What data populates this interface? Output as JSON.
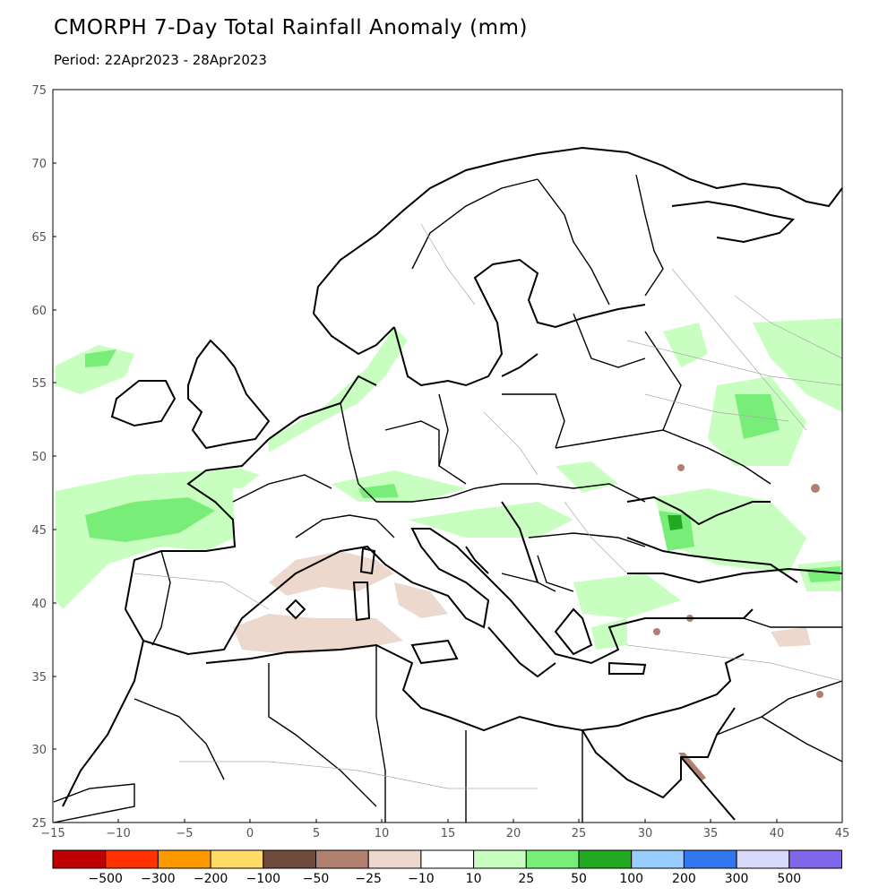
{
  "title": "CMORPH 7-Day Total Rainfall Anomaly (mm)",
  "subtitle": "Period: 22Apr2023 - 28Apr2023",
  "map": {
    "lon_range": [
      -15,
      45
    ],
    "lat_range": [
      25,
      75
    ],
    "x_ticks": [
      "−15",
      "−10",
      "−5",
      "0",
      "5",
      "10",
      "15",
      "20",
      "25",
      "30",
      "35",
      "40",
      "45"
    ],
    "y_ticks": [
      "75",
      "70",
      "65",
      "60",
      "55",
      "50",
      "45",
      "40",
      "35",
      "30",
      "25"
    ]
  },
  "colorbar": {
    "colors": [
      "#c00000",
      "#ff3300",
      "#ff9900",
      "#ffdd66",
      "#704a3c",
      "#b08070",
      "#ecd8cc",
      "#ffffff",
      "#c8ffc0",
      "#78ee78",
      "#22aa22",
      "#99ccff",
      "#3377ee",
      "#d8d8f8",
      "#8066e8"
    ],
    "labels": [
      "−500",
      "−300",
      "−200",
      "−100",
      "−50",
      "−25",
      "−10",
      "10",
      "25",
      "50",
      "100",
      "200",
      "300",
      "500"
    ]
  }
}
